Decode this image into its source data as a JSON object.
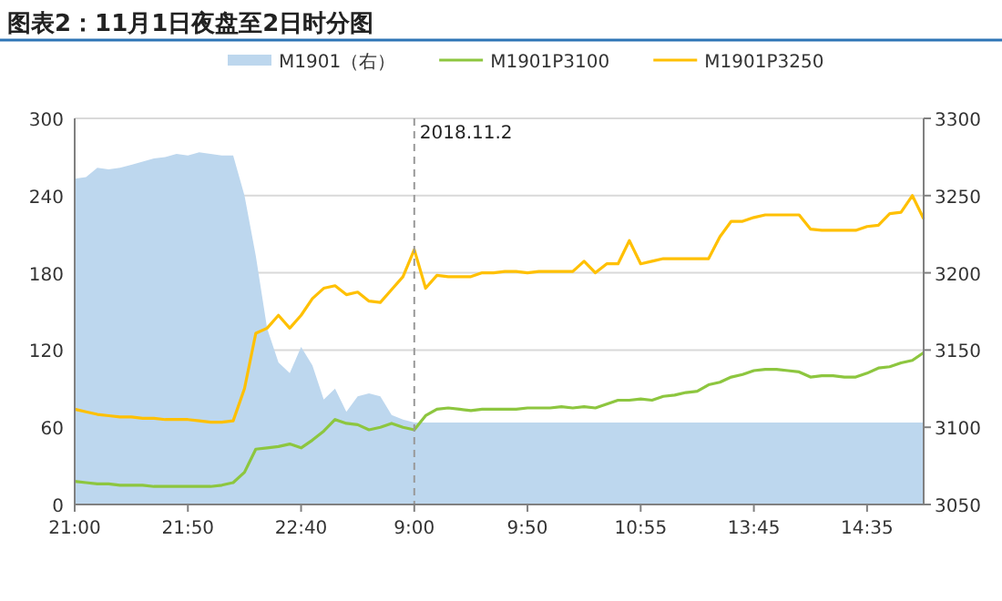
{
  "chart_data": {
    "type": "line",
    "title": "图表2：11月1日夜盘至2日时分图",
    "categories": [
      "21:00",
      null,
      null,
      null,
      null,
      null,
      null,
      null,
      null,
      null,
      "21:50",
      null,
      null,
      null,
      null,
      null,
      null,
      null,
      null,
      null,
      "22:40",
      null,
      null,
      null,
      null,
      null,
      null,
      null,
      null,
      null,
      "9:00",
      null,
      null,
      null,
      null,
      null,
      null,
      null,
      null,
      null,
      "9:50",
      null,
      null,
      null,
      null,
      null,
      null,
      null,
      null,
      null,
      "10:55",
      null,
      null,
      null,
      null,
      null,
      null,
      null,
      null,
      null,
      "13:45",
      null,
      null,
      null,
      null,
      null,
      null,
      null,
      null,
      null,
      "14:35",
      null,
      null,
      null,
      null,
      null
    ],
    "series": [
      {
        "name": "M1901（右）",
        "type": "area",
        "axis": "y2",
        "color": "#bdd7ee",
        "values": [
          3261,
          3262,
          3268,
          3267,
          3268,
          3270,
          3272,
          3274,
          3275,
          3277,
          3276,
          3278,
          3277,
          3276,
          3276,
          3250,
          3211,
          3164,
          3142,
          3135,
          3152,
          3140,
          3118,
          3125,
          3110,
          3120,
          3122,
          3120,
          3108,
          3105,
          3103,
          3103,
          3103,
          3103,
          3103,
          3103,
          3103,
          3103,
          3103,
          3103,
          3103,
          3103,
          3103,
          3103,
          3103,
          3103,
          3103,
          3103,
          3103,
          3103,
          3103,
          3103,
          3103,
          3103,
          3103,
          3103,
          3103,
          3103,
          3103,
          3103,
          3103,
          3103,
          3103,
          3103,
          3103,
          3103,
          3103,
          3103,
          3103,
          3103,
          3103,
          3103,
          3103,
          3103,
          3103,
          3103
        ]
      },
      {
        "name": "M1901P3100",
        "type": "line",
        "color": "#8dc63f",
        "values": [
          18,
          17,
          16,
          16,
          15,
          15,
          15,
          14,
          14,
          14,
          14,
          14,
          14,
          15,
          17,
          25,
          43,
          44,
          45,
          47,
          44,
          50,
          57,
          66,
          63,
          62,
          58,
          60,
          63,
          60,
          58,
          69,
          74,
          75,
          74,
          73,
          74,
          74,
          74,
          74,
          75,
          75,
          75,
          76,
          75,
          76,
          75,
          78,
          81,
          81,
          82,
          81,
          84,
          85,
          87,
          88,
          93,
          95,
          99,
          101,
          104,
          105,
          105,
          104,
          103,
          99,
          100,
          100,
          99,
          99,
          102,
          106,
          107,
          110,
          112,
          118
        ]
      },
      {
        "name": "M1901P3250",
        "type": "line",
        "color": "#ffc000",
        "values": [
          74,
          72,
          70,
          69,
          68,
          68,
          67,
          67,
          66,
          66,
          66,
          65,
          64,
          64,
          65,
          90,
          133,
          137,
          147,
          137,
          147,
          160,
          168,
          170,
          163,
          165,
          158,
          157,
          167,
          177,
          198,
          168,
          178,
          177,
          177,
          177,
          180,
          180,
          181,
          181,
          180,
          181,
          181,
          181,
          181,
          189,
          180,
          187,
          187,
          205,
          187,
          189,
          191,
          191,
          191,
          191,
          191,
          208,
          220,
          220,
          223,
          225,
          225,
          225,
          225,
          214,
          213,
          213,
          213,
          213,
          216,
          217,
          226,
          227,
          240,
          222
        ]
      }
    ],
    "ylim": [
      0,
      300
    ],
    "yticks": [
      0,
      60,
      120,
      180,
      240,
      300
    ],
    "y2lim": [
      3050,
      3300
    ],
    "y2ticks": [
      3050,
      3100,
      3150,
      3200,
      3250,
      3300
    ],
    "grid": "y",
    "legend": "top",
    "ref_lines": [
      {
        "axis": "x",
        "value": "9:00",
        "label": "2018.11.2",
        "color": "#999999",
        "line_style": "dashed"
      }
    ]
  }
}
